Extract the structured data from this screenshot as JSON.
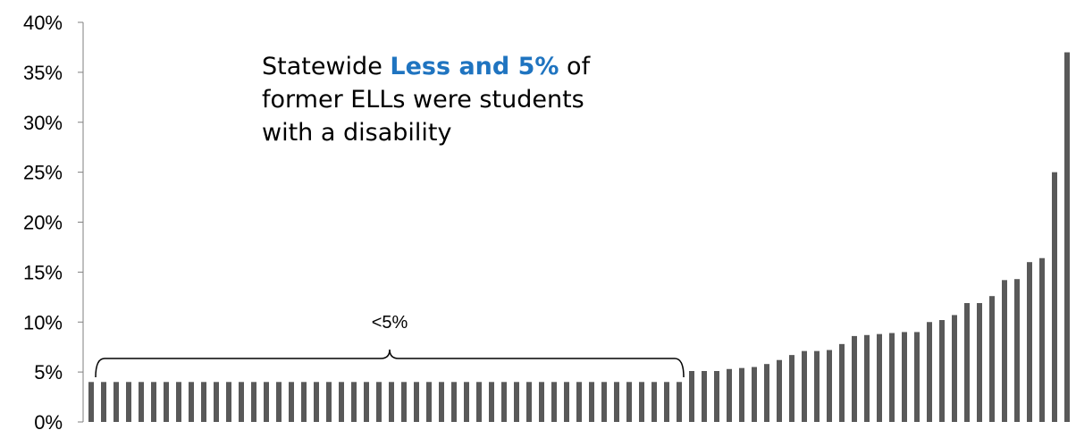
{
  "annotation": {
    "prefix": "Statewide ",
    "highlight": "Less and 5%",
    "line1_suffix": " of",
    "line2": "former ELLs were students",
    "line3": "with a disability",
    "highlight_color": "#1f74c0"
  },
  "bracket": {
    "label": "<5%",
    "from_bar": 0,
    "to_bar": 47
  },
  "colors": {
    "bar": "#595959",
    "axis": "#7f7f7f"
  },
  "chart_data": {
    "type": "bar",
    "title": "",
    "xlabel": "",
    "ylabel": "",
    "ylim": [
      0,
      40
    ],
    "yticks": [
      "0%",
      "5%",
      "10%",
      "15%",
      "20%",
      "25%",
      "30%",
      "35%",
      "40%"
    ],
    "ytick_values": [
      0,
      5,
      10,
      15,
      20,
      25,
      30,
      35,
      40
    ],
    "grid": false,
    "values": [
      4,
      4,
      4,
      4,
      4,
      4,
      4,
      4,
      4,
      4,
      4,
      4,
      4,
      4,
      4,
      4,
      4,
      4,
      4,
      4,
      4,
      4,
      4,
      4,
      4,
      4,
      4,
      4,
      4,
      4,
      4,
      4,
      4,
      4,
      4,
      4,
      4,
      4,
      4,
      4,
      4,
      4,
      4,
      4,
      4,
      4,
      4,
      4,
      5.1,
      5.1,
      5.1,
      5.3,
      5.4,
      5.5,
      5.8,
      6.2,
      6.7,
      7.1,
      7.1,
      7.2,
      7.8,
      8.6,
      8.7,
      8.8,
      8.9,
      9.0,
      9.0,
      10.0,
      10.2,
      10.7,
      11.9,
      11.9,
      12.6,
      14.2,
      14.3,
      16.0,
      16.4,
      25.0,
      37.0
    ]
  }
}
